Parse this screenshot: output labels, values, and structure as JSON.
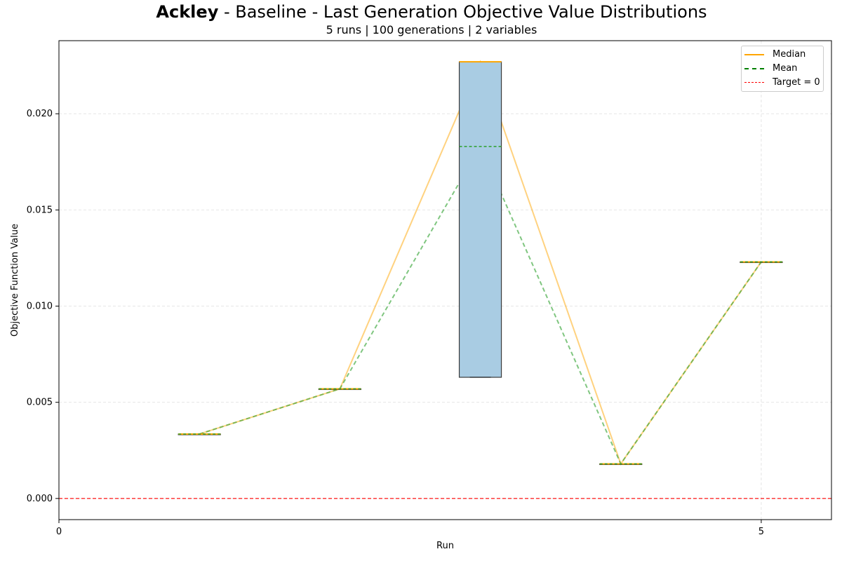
{
  "title": {
    "bold": "Ackley",
    "rest": " - Baseline - Last Generation Objective Value Distributions",
    "subtitle": "5 runs | 100 generations | 2 variables"
  },
  "chart_data": {
    "type": "box",
    "xlabel": "Run",
    "ylabel": "Objective Function Value",
    "xlim": [
      0,
      5.5
    ],
    "ylim": [
      -0.0011,
      0.0238
    ],
    "x_ticks": [
      0,
      5
    ],
    "x_tick_labels": [
      "0",
      "5"
    ],
    "y_ticks": [
      0.0,
      0.005,
      0.01,
      0.015,
      0.02
    ],
    "y_tick_labels": [
      "0.000",
      "0.005",
      "0.010",
      "0.015",
      "0.020"
    ],
    "grid": true,
    "target_line": {
      "label": "Target = 0",
      "value": 0,
      "color": "#ff0000"
    },
    "boxes": [
      {
        "x": 1,
        "min": 0.00335,
        "q1": 0.00335,
        "median": 0.00335,
        "q3": 0.00335,
        "max": 0.00335,
        "mean": 0.00335
      },
      {
        "x": 2,
        "min": 0.0057,
        "q1": 0.0057,
        "median": 0.0057,
        "q3": 0.0057,
        "max": 0.0057,
        "mean": 0.0057
      },
      {
        "x": 3,
        "min": 0.0063,
        "q1": 0.0063,
        "median": 0.0227,
        "q3": 0.0227,
        "max": 0.0227,
        "mean": 0.0183
      },
      {
        "x": 4,
        "min": 0.0018,
        "q1": 0.0018,
        "median": 0.0018,
        "q3": 0.0018,
        "max": 0.0018,
        "mean": 0.0018
      },
      {
        "x": 5,
        "min": 0.0123,
        "q1": 0.0123,
        "median": 0.0123,
        "q3": 0.0123,
        "max": 0.0123,
        "mean": 0.0123
      }
    ],
    "legend": {
      "placement": "top-right",
      "entries": [
        {
          "label": "Median",
          "color": "#ffa500",
          "style": "solid"
        },
        {
          "label": "Mean",
          "color": "#008000",
          "style": "dashed"
        },
        {
          "label": "Target = 0",
          "color": "#ff0000",
          "style": "dashed"
        }
      ]
    },
    "colors": {
      "box_fill": "#a9cce3",
      "box_edge": "#3a3a3a",
      "median_connector": "#ffa500",
      "mean_connector": "#2ca02c"
    }
  }
}
